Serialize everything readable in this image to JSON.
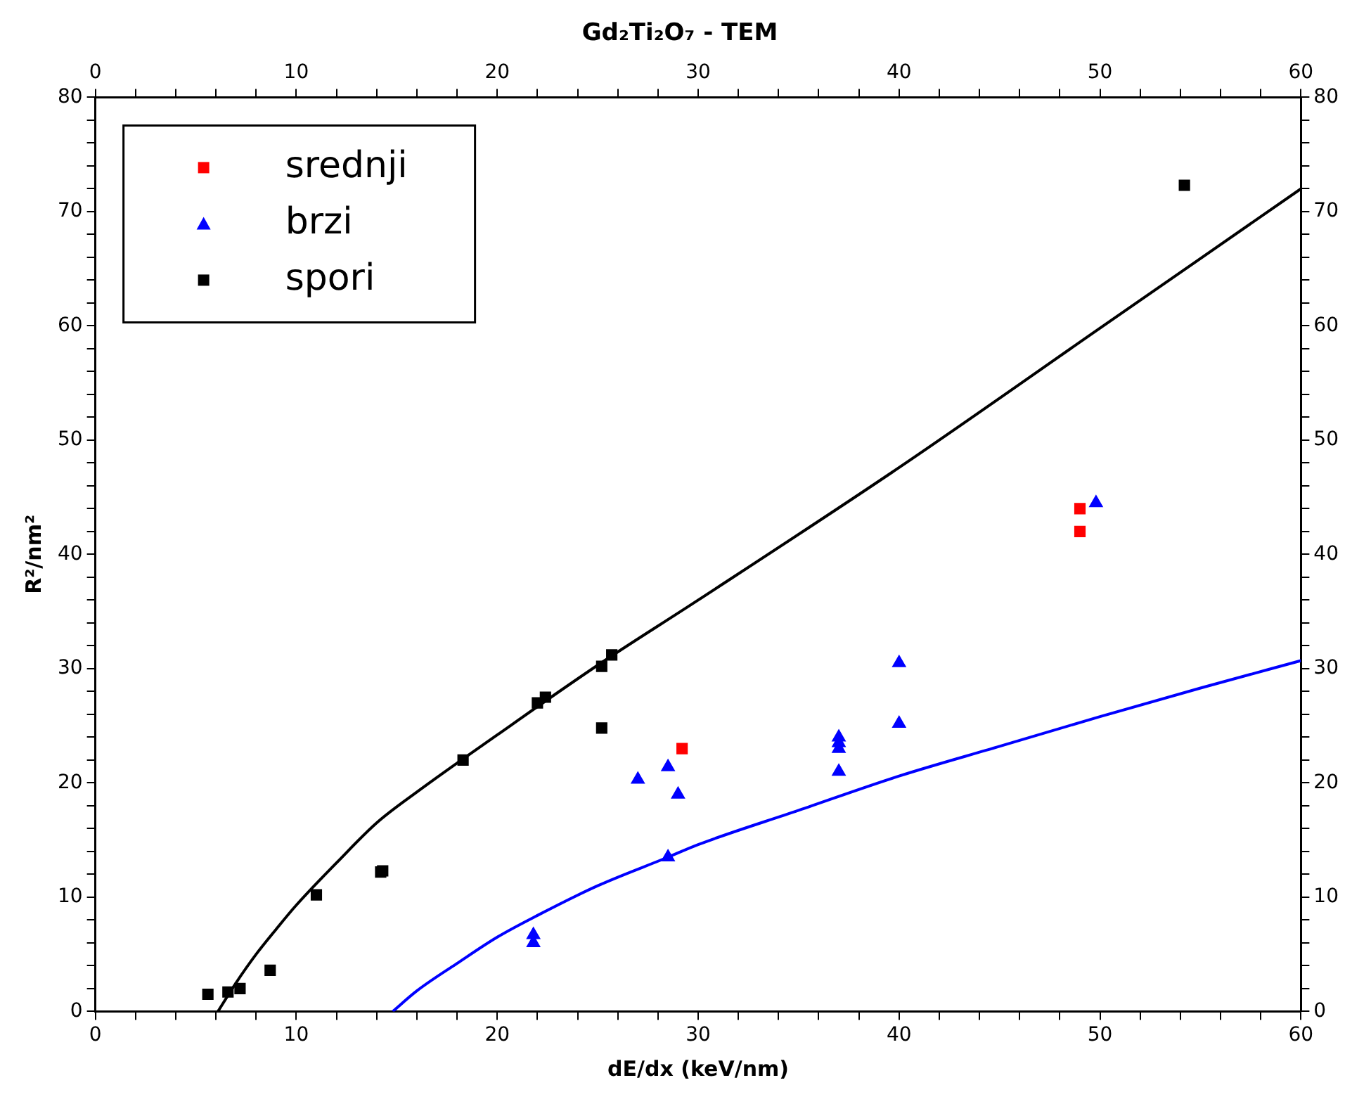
{
  "chart_data": {
    "type": "scatter",
    "title": "Gd₂Ti₂O₇ - TEM",
    "xlabel": "dE/dx (keV/nm)",
    "ylabel": "R²/nm²",
    "xlim": [
      0,
      60
    ],
    "xticks": [
      0,
      {
        "value": 2,
        "label": null
      },
      {
        "value": 4,
        "label": null
      },
      {
        "value": 6,
        "label": null
      },
      {
        "value": 8,
        "label": null
      },
      10,
      {
        "value": 12,
        "label": null
      },
      {
        "value": 14,
        "label": null
      },
      {
        "value": 16,
        "label": null
      },
      {
        "value": 18,
        "label": null
      },
      20,
      {
        "value": 22,
        "label": null
      },
      {
        "value": 24,
        "label": null
      },
      {
        "value": 26,
        "label": null
      },
      {
        "value": 28,
        "label": null
      },
      30,
      {
        "value": 32,
        "label": null
      },
      {
        "value": 34,
        "label": null
      },
      {
        "value": 36,
        "label": null
      },
      {
        "value": 38,
        "label": null
      },
      40,
      {
        "value": 42,
        "label": null
      },
      {
        "value": 44,
        "label": null
      },
      {
        "value": 46,
        "label": null
      },
      {
        "value": 48,
        "label": null
      },
      50,
      {
        "value": 52,
        "label": null
      },
      {
        "value": 54,
        "label": null
      },
      {
        "value": 56,
        "label": null
      },
      {
        "value": 58,
        "label": null
      },
      60
    ],
    "x2lim": [
      0,
      60
    ],
    "x2ticks": [
      0,
      {
        "value": 2,
        "label": null
      },
      {
        "value": 4,
        "label": null
      },
      {
        "value": 6,
        "label": null
      },
      {
        "value": 8,
        "label": null
      },
      10,
      {
        "value": 12,
        "label": null
      },
      {
        "value": 14,
        "label": null
      },
      {
        "value": 16,
        "label": null
      },
      {
        "value": 18,
        "label": null
      },
      20,
      {
        "value": 22,
        "label": null
      },
      {
        "value": 24,
        "label": null
      },
      {
        "value": 26,
        "label": null
      },
      {
        "value": 28,
        "label": null
      },
      30,
      {
        "value": 32,
        "label": null
      },
      {
        "value": 34,
        "label": null
      },
      {
        "value": 36,
        "label": null
      },
      {
        "value": 38,
        "label": null
      },
      40,
      {
        "value": 42,
        "label": null
      },
      {
        "value": 44,
        "label": null
      },
      {
        "value": 46,
        "label": null
      },
      {
        "value": 48,
        "label": null
      },
      50,
      {
        "value": 52,
        "label": null
      },
      {
        "value": 54,
        "label": null
      },
      {
        "value": 56,
        "label": null
      },
      {
        "value": 58,
        "label": null
      },
      60
    ],
    "ylim": [
      0,
      80
    ],
    "yticks": [
      0,
      {
        "value": 2,
        "label": null
      },
      {
        "value": 4,
        "label": null
      },
      {
        "value": 6,
        "label": null
      },
      {
        "value": 8,
        "label": null
      },
      10,
      {
        "value": 12,
        "label": null
      },
      {
        "value": 14,
        "label": null
      },
      {
        "value": 16,
        "label": null
      },
      {
        "value": 18,
        "label": null
      },
      20,
      {
        "value": 22,
        "label": null
      },
      {
        "value": 24,
        "label": null
      },
      {
        "value": 26,
        "label": null
      },
      {
        "value": 28,
        "label": null
      },
      30,
      {
        "value": 32,
        "label": null
      },
      {
        "value": 34,
        "label": null
      },
      {
        "value": 36,
        "label": null
      },
      {
        "value": 38,
        "label": null
      },
      40,
      {
        "value": 42,
        "label": null
      },
      {
        "value": 44,
        "label": null
      },
      {
        "value": 46,
        "label": null
      },
      {
        "value": 48,
        "label": null
      },
      50,
      {
        "value": 52,
        "label": null
      },
      {
        "value": 54,
        "label": null
      },
      {
        "value": 56,
        "label": null
      },
      {
        "value": 58,
        "label": null
      },
      60,
      {
        "value": 62,
        "label": null
      },
      {
        "value": 64,
        "label": null
      },
      {
        "value": 66,
        "label": null
      },
      {
        "value": 68,
        "label": null
      },
      70,
      {
        "value": 72,
        "label": null
      },
      {
        "value": 74,
        "label": null
      },
      {
        "value": 76,
        "label": null
      },
      {
        "value": 78,
        "label": null
      },
      80
    ],
    "y2lim": [
      0,
      80
    ],
    "y2ticks": [
      0,
      {
        "value": 2,
        "label": null
      },
      {
        "value": 4,
        "label": null
      },
      {
        "value": 6,
        "label": null
      },
      {
        "value": 8,
        "label": null
      },
      10,
      {
        "value": 12,
        "label": null
      },
      {
        "value": 14,
        "label": null
      },
      {
        "value": 16,
        "label": null
      },
      {
        "value": 18,
        "label": null
      },
      20,
      {
        "value": 22,
        "label": null
      },
      {
        "value": 24,
        "label": null
      },
      {
        "value": 26,
        "label": null
      },
      {
        "value": 28,
        "label": null
      },
      30,
      {
        "value": 32,
        "label": null
      },
      {
        "value": 34,
        "label": null
      },
      {
        "value": 36,
        "label": null
      },
      {
        "value": 38,
        "label": null
      },
      40,
      {
        "value": 42,
        "label": null
      },
      {
        "value": 44,
        "label": null
      },
      {
        "value": 46,
        "label": null
      },
      {
        "value": 48,
        "label": null
      },
      50,
      {
        "value": 52,
        "label": null
      },
      {
        "value": 54,
        "label": null
      },
      {
        "value": 56,
        "label": null
      },
      {
        "value": 58,
        "label": null
      },
      60,
      {
        "value": 62,
        "label": null
      },
      {
        "value": 64,
        "label": null
      },
      {
        "value": 66,
        "label": null
      },
      {
        "value": 68,
        "label": null
      },
      70,
      {
        "value": 72,
        "label": null
      },
      {
        "value": 74,
        "label": null
      },
      {
        "value": 76,
        "label": null
      },
      {
        "value": 78,
        "label": null
      },
      80
    ],
    "grid": false,
    "legend": "top left",
    "series": [
      {
        "name": "srednji",
        "color": "#ff0000",
        "marker": "square",
        "x": [
          29.2,
          49,
          49
        ],
        "values": [
          23,
          44,
          42
        ]
      },
      {
        "name": "brzi",
        "color": "#0000ff",
        "marker": "triangle",
        "x": [
          21.8,
          21.8,
          27,
          28.5,
          29,
          28.5,
          37,
          37,
          37,
          37,
          40,
          40,
          49.8
        ],
        "values": [
          6,
          6.7,
          20.3,
          21.4,
          19,
          13.5,
          21,
          23,
          23.5,
          24,
          30.5,
          25.2,
          44.5
        ]
      },
      {
        "name": "spori",
        "color": "#000000",
        "marker": "square",
        "x": [
          5.6,
          6.6,
          7.2,
          8.7,
          11,
          14.2,
          14.3,
          18.3,
          22,
          22.4,
          25.2,
          25.7,
          25.2,
          54.2
        ],
        "values": [
          1.5,
          1.7,
          2,
          3.6,
          10.2,
          12.2,
          12.3,
          22,
          27,
          27.5,
          30.2,
          31.2,
          24.8,
          72.3
        ]
      },
      {
        "type": "line",
        "color": "#000000",
        "marker": "none",
        "x": [
          6.1,
          7,
          8,
          9,
          10,
          12,
          14,
          16,
          20,
          25,
          30,
          40,
          50,
          60
        ],
        "values": [
          0,
          2.5,
          5,
          7.2,
          9.3,
          13,
          16.5,
          19.2,
          24.2,
          30.3,
          36,
          47.6,
          59.8,
          72
        ]
      },
      {
        "type": "line",
        "color": "#0000ff",
        "marker": "none",
        "x": [
          14.8,
          16,
          18,
          20,
          22,
          25,
          28.5,
          30,
          35,
          40,
          45,
          50,
          55,
          60
        ],
        "values": [
          0,
          1.8,
          4.2,
          6.5,
          8.4,
          11,
          13.5,
          14.6,
          17.6,
          20.6,
          23.2,
          25.8,
          28.3,
          30.7
        ]
      }
    ]
  }
}
